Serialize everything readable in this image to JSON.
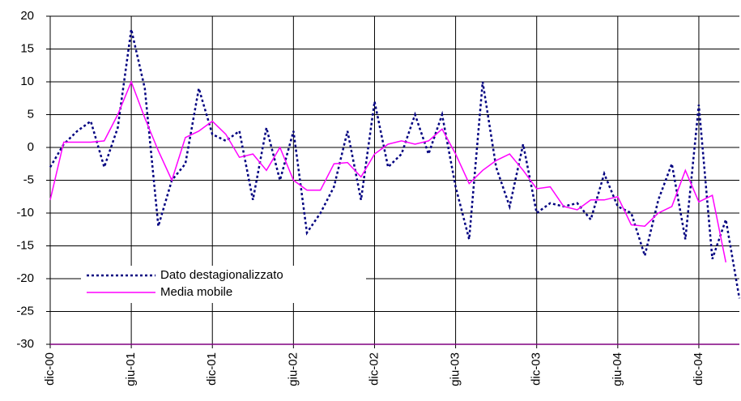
{
  "chart_data": {
    "type": "line",
    "categories": [
      "dic-00",
      null,
      null,
      null,
      null,
      null,
      "giu-01",
      null,
      null,
      null,
      null,
      null,
      "dic-01",
      null,
      null,
      null,
      null,
      null,
      "giu-02",
      null,
      null,
      null,
      null,
      null,
      "dic-02",
      null,
      null,
      null,
      null,
      null,
      "giu-03",
      null,
      null,
      null,
      null,
      null,
      "dic-03",
      null,
      null,
      null,
      null,
      null,
      "giu-04",
      null,
      null,
      null,
      null,
      null,
      "dic-04",
      null,
      null,
      null
    ],
    "series": [
      {
        "name": "Dato destagionalizzato",
        "color": "#000080",
        "dash": true,
        "values": [
          -3,
          0.5,
          2.5,
          4,
          -3,
          3,
          18,
          9,
          -12,
          -5,
          -2.5,
          9,
          2,
          1,
          2.5,
          -8,
          3,
          -5,
          2.5,
          -13,
          -10,
          -6,
          2.5,
          -8,
          7,
          -3,
          -1,
          5,
          -1,
          5,
          -6,
          -14,
          10,
          -3,
          -9,
          0.5,
          -10,
          -8.5,
          -9,
          -8.5,
          -11,
          -4,
          -9,
          -10,
          -16.5,
          -8,
          -2.5,
          -14,
          6.5,
          -17,
          -11,
          -23
        ]
      },
      {
        "name": "Media mobile",
        "color": "#ff00ff",
        "dash": false,
        "values": [
          -8,
          0.8,
          0.8,
          0.8,
          1,
          5,
          10,
          4.5,
          -0.5,
          -5,
          1.5,
          2.5,
          4,
          2,
          -1.5,
          -1,
          -3.5,
          0,
          -5,
          -6.5,
          -6.5,
          -2.5,
          -2.3,
          -4.5,
          -1,
          0.5,
          1,
          0.5,
          1,
          2.8,
          -1,
          -5.5,
          -3.5,
          -2,
          -1,
          -3.5,
          -6.3,
          -6,
          -9,
          -9.5,
          -8,
          -8,
          -7.5,
          -11.8,
          -12,
          -10,
          -9,
          -3.5,
          -8.3,
          -7.3,
          -17.5,
          null
        ]
      }
    ],
    "ylim": [
      -30,
      20
    ],
    "yticks": [
      -30,
      -25,
      -20,
      -15,
      -10,
      -5,
      0,
      5,
      10,
      15,
      20
    ],
    "grid": true
  }
}
